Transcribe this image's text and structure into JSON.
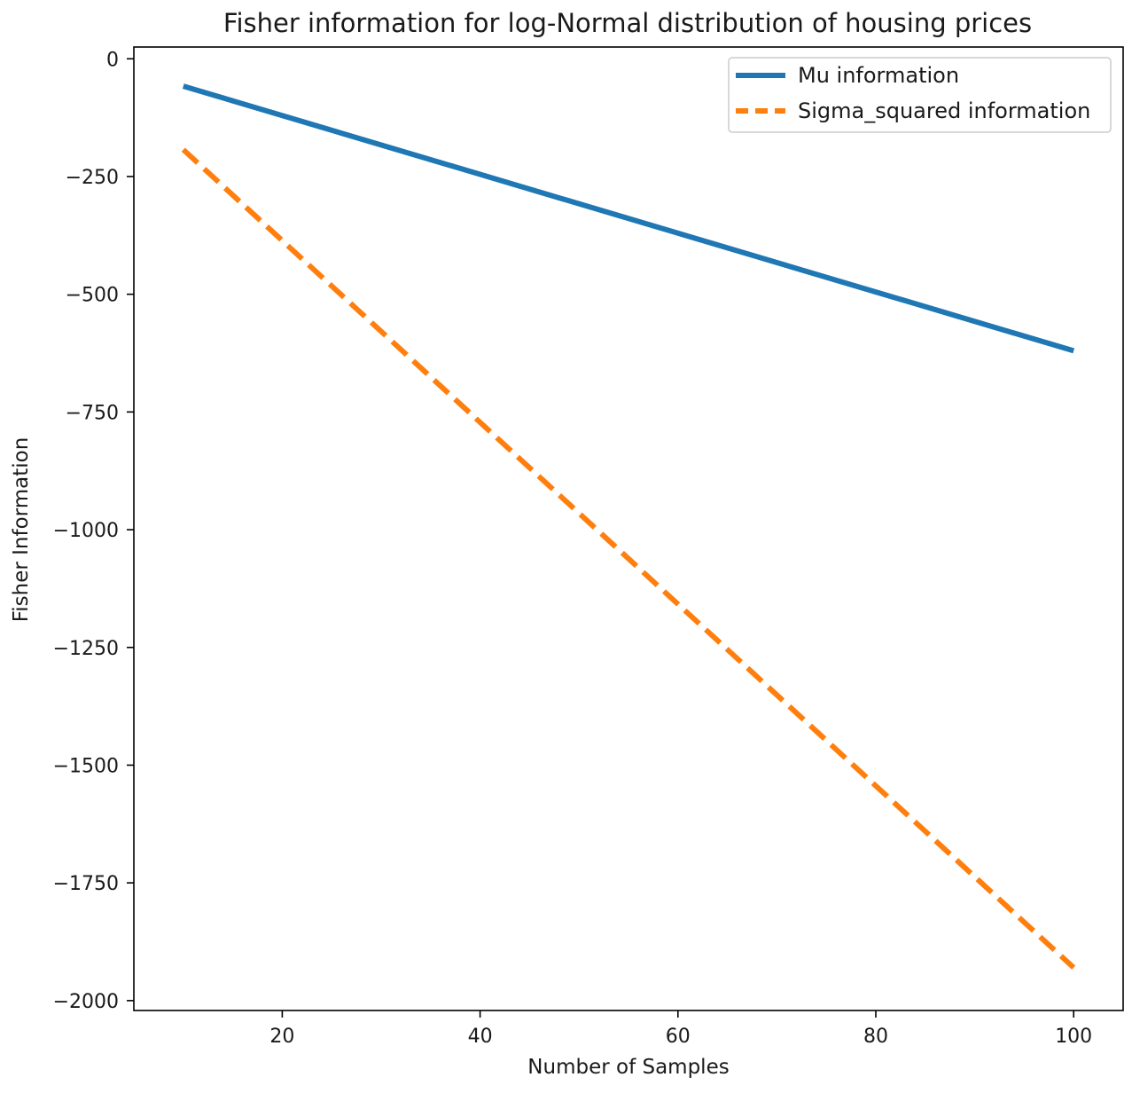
{
  "chart_data": {
    "type": "line",
    "title": "Fisher information for log-Normal distribution of housing prices",
    "xlabel": "Number of Samples",
    "ylabel": "Fisher Information",
    "xlim": [
      5,
      105
    ],
    "ylim": [
      -2021,
      25
    ],
    "xticks": [
      20,
      40,
      60,
      80,
      100
    ],
    "xtick_labels": [
      "20",
      "40",
      "60",
      "80",
      "100"
    ],
    "yticks": [
      0,
      -250,
      -500,
      -750,
      -1000,
      -1250,
      -1500,
      -1750,
      -2000
    ],
    "ytick_labels": [
      "0",
      "−250",
      "−500",
      "−750",
      "−1000",
      "−1250",
      "−1500",
      "−1750",
      "−2000"
    ],
    "grid": false,
    "legend_position": "top-right",
    "series": [
      {
        "name": "Mu information",
        "x": [
          10,
          100
        ],
        "y": [
          -58,
          -620
        ],
        "color": "#1f77b4",
        "style": "solid"
      },
      {
        "name": "Sigma_squared information",
        "x": [
          10,
          100
        ],
        "y": [
          -193,
          -1930
        ],
        "color": "#ff7f0e",
        "style": "dashed"
      }
    ]
  }
}
